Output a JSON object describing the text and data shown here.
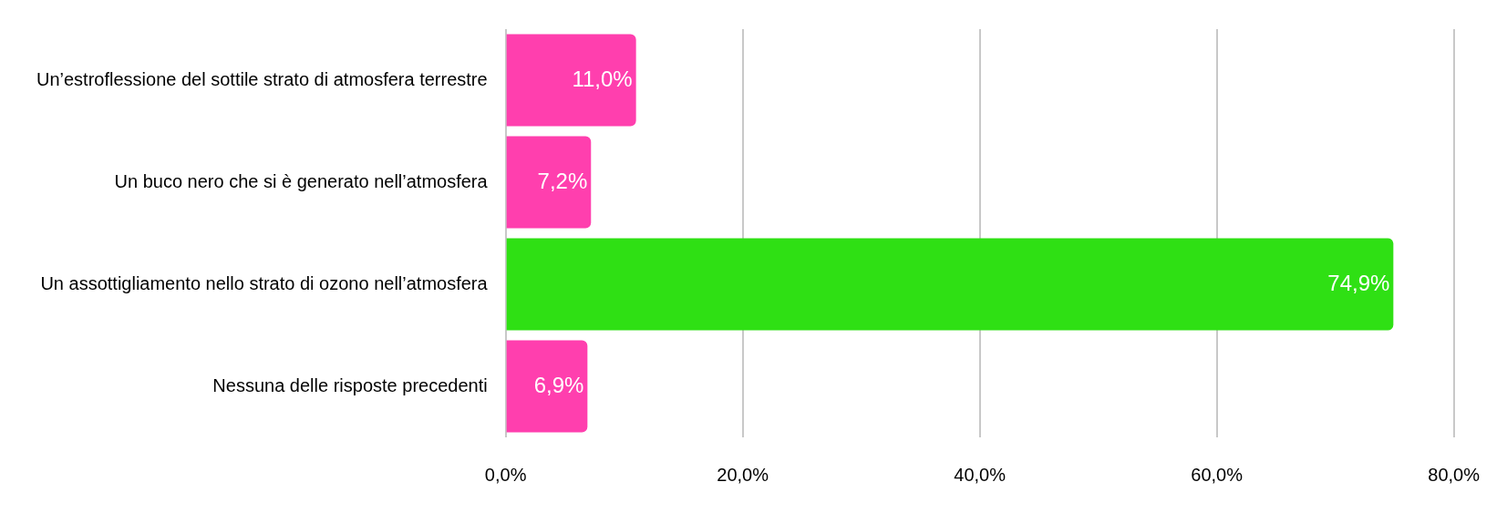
{
  "chart_data": {
    "type": "bar",
    "orientation": "horizontal",
    "categories": [
      "Un’estroflessione del sottile strato di atmosfera terrestre",
      "Un buco nero che si è generato nell’atmosfera",
      "Un assottigliamento nello strato di ozono nell’atmosfera",
      "Nessuna delle risposte precedenti"
    ],
    "values": [
      11.0,
      7.2,
      74.9,
      6.9
    ],
    "colors": [
      "#ff3fae",
      "#ff3fae",
      "#2fe014",
      "#ff3fae"
    ],
    "value_labels": [
      "11,0%",
      "7,2%",
      "74,9%",
      "6,9%"
    ],
    "xlim": [
      0,
      80
    ],
    "xticks": [
      {
        "value": 0,
        "label": "0,0%"
      },
      {
        "value": 20,
        "label": "20,0%"
      },
      {
        "value": 40,
        "label": "40,0%"
      },
      {
        "value": 60,
        "label": "60,0%"
      },
      {
        "value": 80,
        "label": "80,0%"
      }
    ],
    "grid": "x",
    "legend": false
  }
}
